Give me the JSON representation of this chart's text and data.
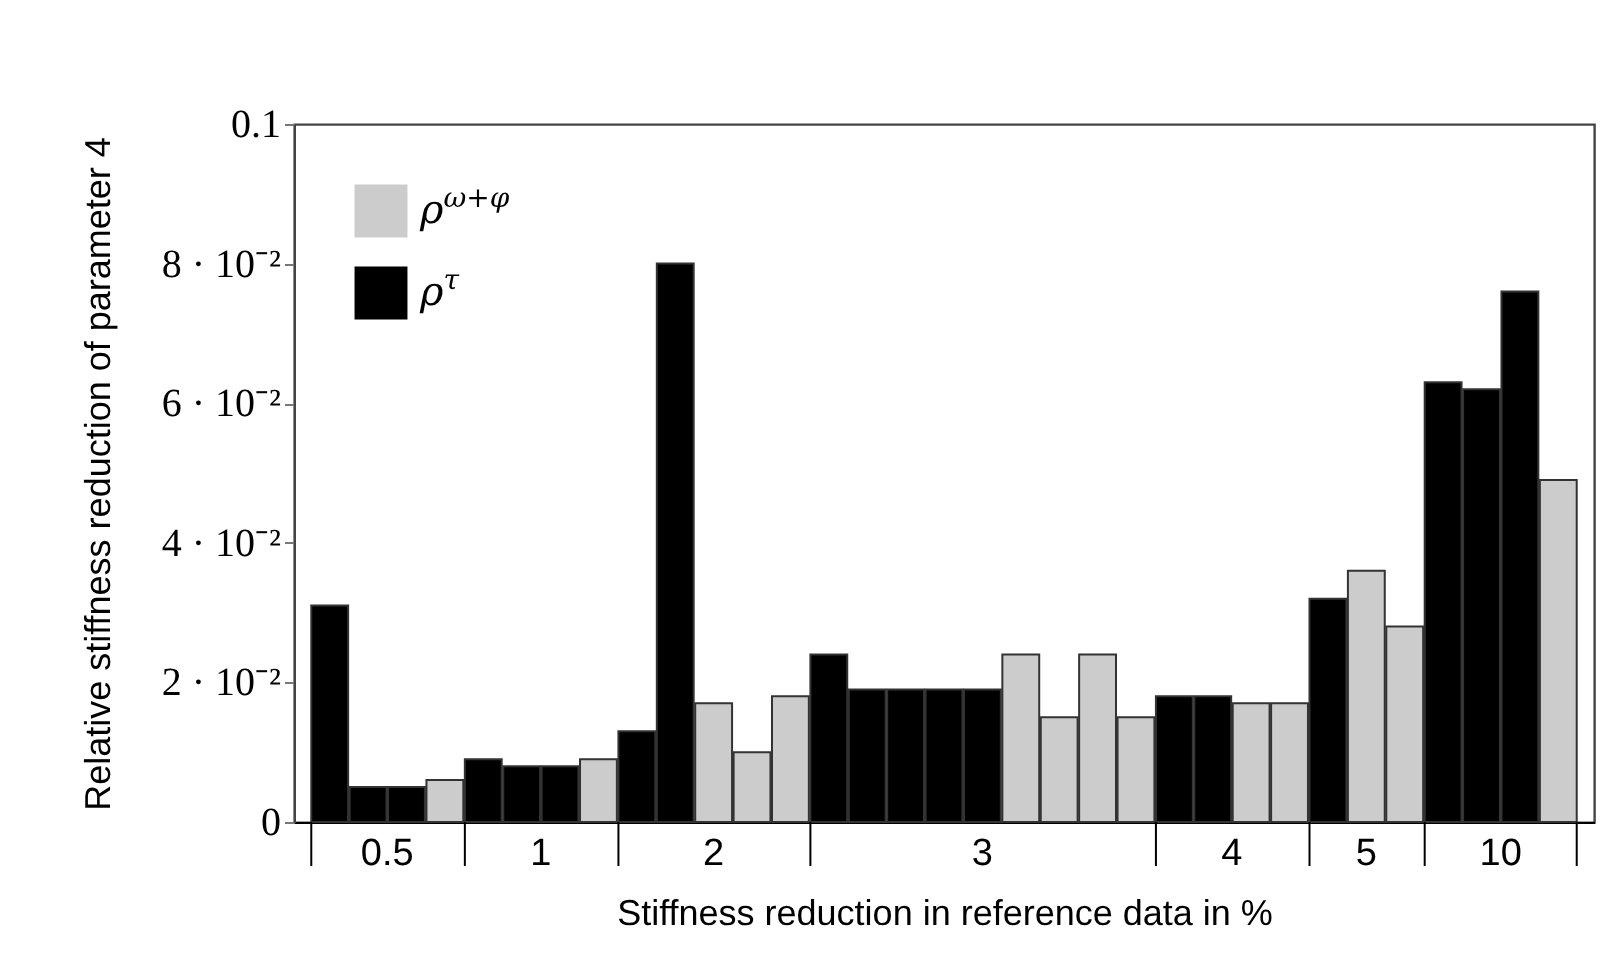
{
  "chart_data": {
    "type": "bar",
    "xlabel": "Stiffness reduction in reference data in %",
    "ylabel": "Relative stiffness reduction of parameter 4",
    "categories": [
      null,
      "0.5",
      null,
      null,
      null,
      "1",
      null,
      null,
      null,
      null,
      "2",
      null,
      null,
      null,
      null,
      null,
      null,
      "3",
      null,
      null,
      null,
      null,
      null,
      "4",
      null,
      null,
      null,
      "5",
      null,
      null,
      "10",
      null,
      null
    ],
    "series": [
      {
        "name": "ρ$^{ω+φ}$",
        "color": "#cccccc",
        "values": [
          null,
          null,
          null,
          0.006,
          null,
          null,
          null,
          0.009,
          null,
          null,
          0.017,
          0.01,
          0.018,
          null,
          null,
          null,
          null,
          null,
          0.024,
          0.015,
          0.024,
          0.015,
          null,
          null,
          0.017,
          0.017,
          null,
          0.036,
          0.028,
          null,
          null,
          null,
          0.049
        ]
      },
      {
        "name": "ρ$^{τ}$",
        "color": "#000000",
        "values": [
          0.031,
          0.005,
          0.005,
          null,
          0.009,
          0.008,
          0.008,
          null,
          0.013,
          0.08,
          null,
          null,
          null,
          0.024,
          0.019,
          0.019,
          0.019,
          0.019,
          null,
          null,
          null,
          null,
          0.018,
          0.018,
          null,
          null,
          0.032,
          null,
          null,
          0.063,
          0.062,
          0.076,
          null
        ]
      }
    ],
    "ylim": [
      0,
      0.1
    ],
    "yticks": [
      0,
      {
        "value": 0.02,
        "label": "2 · 10⁻²"
      },
      {
        "value": 0.04,
        "label": "4 · 10⁻²"
      },
      {
        "value": 0.06,
        "label": "6 · 10⁻²"
      },
      {
        "value": 0.08,
        "label": "8 · 10⁻²"
      },
      0.1
    ],
    "grid": false,
    "legend": "top left"
  }
}
